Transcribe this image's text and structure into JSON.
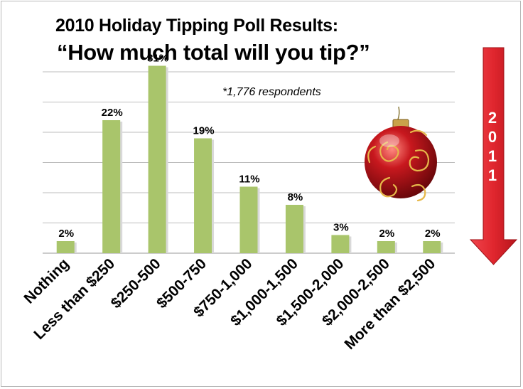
{
  "title": "2010 Holiday Tipping Poll Results:",
  "subtitle": "“How much total will you tip?”",
  "note": "*1,776 respondents",
  "arrow": {
    "label_chars": [
      "2",
      "0",
      "1",
      "1"
    ],
    "color": "#e0262e"
  },
  "ornament": {
    "name": "christmas-ornament-icon",
    "color": "#c8181e",
    "swirl_color": "#e6b84a"
  },
  "chart_data": {
    "type": "bar",
    "categories": [
      "Nothing",
      "Less than $250",
      "$250-500",
      "$500-750",
      "$750-1,000",
      "$1,000-1,500",
      "$1,500-2,000",
      "$2,000-2,500",
      "More than $2,500"
    ],
    "values": [
      2,
      22,
      31,
      19,
      11,
      8,
      3,
      2,
      2
    ],
    "data_labels": [
      "2%",
      "22%",
      "31%",
      "19%",
      "11%",
      "8%",
      "3%",
      "2%",
      "2%"
    ],
    "title": "2010 Holiday Tipping Poll Results:",
    "ylim": [
      0,
      35
    ],
    "grid": true,
    "bar_color": "#a9c56b"
  }
}
